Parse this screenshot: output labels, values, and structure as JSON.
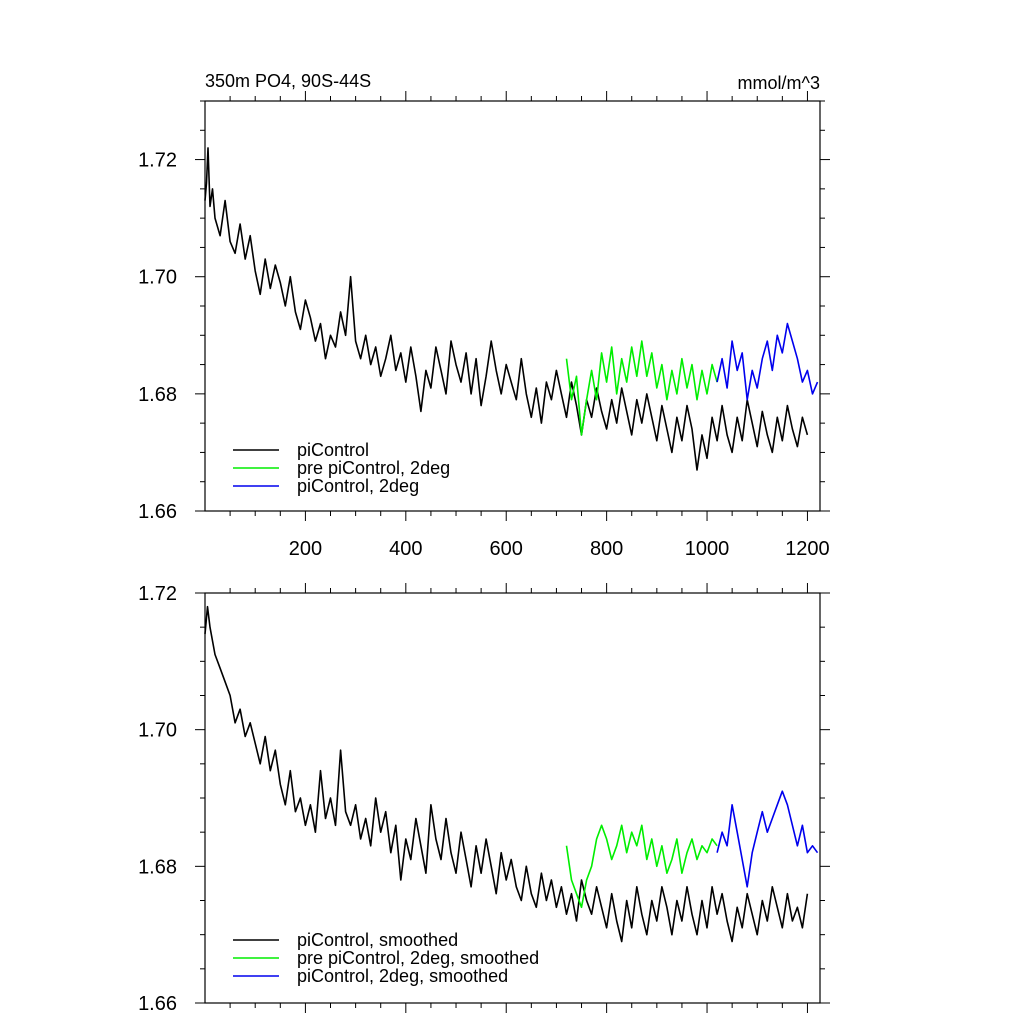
{
  "chart_data": [
    {
      "type": "line",
      "title_left": "350m PO4, 90S-44S",
      "title_right": "mmol/m^3",
      "xlim": [
        0,
        1225
      ],
      "ylim": [
        1.66,
        1.73
      ],
      "x_ticks": [
        200,
        400,
        600,
        800,
        1000,
        1200
      ],
      "y_ticks": [
        "1.66",
        "1.68",
        "1.70",
        "1.72"
      ],
      "legend_position": "bottom-left",
      "series": [
        {
          "name": "piControl",
          "color": "#000000",
          "x": [
            0,
            3,
            6,
            10,
            15,
            20,
            30,
            40,
            50,
            60,
            70,
            80,
            90,
            100,
            110,
            120,
            130,
            140,
            150,
            160,
            170,
            180,
            190,
            200,
            210,
            220,
            230,
            240,
            250,
            260,
            270,
            280,
            290,
            300,
            310,
            320,
            330,
            340,
            350,
            360,
            370,
            380,
            390,
            400,
            410,
            420,
            430,
            440,
            450,
            460,
            470,
            480,
            490,
            500,
            510,
            520,
            530,
            540,
            550,
            560,
            570,
            580,
            590,
            600,
            610,
            620,
            630,
            640,
            650,
            660,
            670,
            680,
            690,
            700,
            710,
            720,
            730,
            740,
            750,
            760,
            770,
            780,
            790,
            800,
            810,
            820,
            830,
            840,
            850,
            860,
            870,
            880,
            890,
            900,
            910,
            920,
            930,
            940,
            950,
            960,
            970,
            980,
            990,
            1000,
            1010,
            1020,
            1030,
            1040,
            1050,
            1060,
            1070,
            1080,
            1090,
            1100,
            1110,
            1120,
            1130,
            1140,
            1150,
            1160,
            1170,
            1180,
            1190,
            1200
          ],
          "values": [
            1.713,
            1.716,
            1.722,
            1.712,
            1.715,
            1.71,
            1.707,
            1.713,
            1.706,
            1.704,
            1.709,
            1.703,
            1.707,
            1.701,
            1.697,
            1.703,
            1.698,
            1.702,
            1.699,
            1.695,
            1.7,
            1.694,
            1.691,
            1.696,
            1.693,
            1.689,
            1.692,
            1.686,
            1.69,
            1.688,
            1.694,
            1.69,
            1.7,
            1.689,
            1.686,
            1.69,
            1.685,
            1.688,
            1.683,
            1.686,
            1.69,
            1.684,
            1.687,
            1.682,
            1.688,
            1.683,
            1.677,
            1.684,
            1.681,
            1.688,
            1.684,
            1.68,
            1.689,
            1.685,
            1.682,
            1.687,
            1.68,
            1.686,
            1.678,
            1.683,
            1.689,
            1.684,
            1.68,
            1.685,
            1.682,
            1.679,
            1.686,
            1.68,
            1.676,
            1.681,
            1.675,
            1.682,
            1.679,
            1.684,
            1.68,
            1.676,
            1.682,
            1.678,
            1.673,
            1.679,
            1.676,
            1.681,
            1.677,
            1.674,
            1.679,
            1.675,
            1.681,
            1.677,
            1.673,
            1.679,
            1.675,
            1.68,
            1.676,
            1.672,
            1.678,
            1.674,
            1.67,
            1.676,
            1.672,
            1.678,
            1.674,
            1.667,
            1.673,
            1.669,
            1.676,
            1.672,
            1.678,
            1.673,
            1.67,
            1.676,
            1.672,
            1.679,
            1.675,
            1.671,
            1.677,
            1.673,
            1.67,
            1.676,
            1.672,
            1.678,
            1.674,
            1.671,
            1.676,
            1.673
          ]
        },
        {
          "name": "pre piControl, 2deg",
          "color": "#00ee00",
          "x": [
            720,
            730,
            740,
            750,
            760,
            770,
            780,
            790,
            800,
            810,
            820,
            830,
            840,
            850,
            860,
            870,
            880,
            890,
            900,
            910,
            920,
            930,
            940,
            950,
            960,
            970,
            980,
            990,
            1000,
            1010,
            1020
          ],
          "values": [
            1.686,
            1.679,
            1.683,
            1.673,
            1.679,
            1.684,
            1.679,
            1.687,
            1.682,
            1.688,
            1.68,
            1.686,
            1.682,
            1.688,
            1.683,
            1.689,
            1.683,
            1.687,
            1.681,
            1.685,
            1.679,
            1.684,
            1.68,
            1.686,
            1.681,
            1.685,
            1.679,
            1.684,
            1.68,
            1.685,
            1.682
          ]
        },
        {
          "name": "piControl, 2deg",
          "color": "#0000ee",
          "x": [
            1020,
            1030,
            1040,
            1050,
            1060,
            1070,
            1080,
            1090,
            1100,
            1110,
            1120,
            1130,
            1140,
            1150,
            1160,
            1170,
            1180,
            1190,
            1200,
            1210,
            1220
          ],
          "values": [
            1.682,
            1.686,
            1.681,
            1.689,
            1.684,
            1.687,
            1.679,
            1.684,
            1.681,
            1.686,
            1.689,
            1.684,
            1.69,
            1.687,
            1.692,
            1.689,
            1.686,
            1.682,
            1.684,
            1.68,
            1.682
          ]
        }
      ]
    },
    {
      "type": "line",
      "xlim": [
        0,
        1225
      ],
      "ylim": [
        1.66,
        1.72
      ],
      "x_ticks": [
        200,
        400,
        600,
        800,
        1000,
        1200
      ],
      "y_ticks": [
        "1.66",
        "1.68",
        "1.70",
        "1.72"
      ],
      "legend_position": "bottom-left",
      "series": [
        {
          "name": "piControl, smoothed",
          "color": "#000000",
          "x": [
            0,
            5,
            10,
            20,
            30,
            40,
            50,
            60,
            70,
            80,
            90,
            100,
            110,
            120,
            130,
            140,
            150,
            160,
            170,
            180,
            190,
            200,
            210,
            220,
            230,
            240,
            250,
            260,
            270,
            280,
            290,
            300,
            310,
            320,
            330,
            340,
            350,
            360,
            370,
            380,
            390,
            400,
            410,
            420,
            430,
            440,
            450,
            460,
            470,
            480,
            490,
            500,
            510,
            520,
            530,
            540,
            550,
            560,
            570,
            580,
            590,
            600,
            610,
            620,
            630,
            640,
            650,
            660,
            670,
            680,
            690,
            700,
            710,
            720,
            730,
            740,
            750,
            760,
            770,
            780,
            790,
            800,
            810,
            820,
            830,
            840,
            850,
            860,
            870,
            880,
            890,
            900,
            910,
            920,
            930,
            940,
            950,
            960,
            970,
            980,
            990,
            1000,
            1010,
            1020,
            1030,
            1040,
            1050,
            1060,
            1070,
            1080,
            1090,
            1100,
            1110,
            1120,
            1130,
            1140,
            1150,
            1160,
            1170,
            1180,
            1190,
            1200
          ],
          "values": [
            1.714,
            1.718,
            1.715,
            1.711,
            1.709,
            1.707,
            1.705,
            1.701,
            1.703,
            1.699,
            1.701,
            1.698,
            1.695,
            1.699,
            1.694,
            1.697,
            1.692,
            1.689,
            1.694,
            1.688,
            1.69,
            1.686,
            1.689,
            1.685,
            1.694,
            1.687,
            1.69,
            1.686,
            1.697,
            1.688,
            1.686,
            1.689,
            1.684,
            1.687,
            1.683,
            1.69,
            1.685,
            1.688,
            1.682,
            1.686,
            1.678,
            1.684,
            1.681,
            1.687,
            1.683,
            1.679,
            1.689,
            1.684,
            1.681,
            1.687,
            1.682,
            1.679,
            1.685,
            1.681,
            1.677,
            1.683,
            1.679,
            1.684,
            1.68,
            1.676,
            1.682,
            1.678,
            1.681,
            1.677,
            1.675,
            1.68,
            1.676,
            1.674,
            1.679,
            1.675,
            1.678,
            1.674,
            1.677,
            1.673,
            1.676,
            1.672,
            1.678,
            1.675,
            1.673,
            1.677,
            1.674,
            1.671,
            1.676,
            1.672,
            1.669,
            1.675,
            1.671,
            1.677,
            1.673,
            1.67,
            1.675,
            1.672,
            1.677,
            1.674,
            1.67,
            1.675,
            1.672,
            1.677,
            1.673,
            1.67,
            1.675,
            1.671,
            1.677,
            1.673,
            1.676,
            1.672,
            1.669,
            1.674,
            1.671,
            1.676,
            1.673,
            1.67,
            1.675,
            1.672,
            1.677,
            1.674,
            1.671,
            1.676,
            1.672,
            1.674,
            1.671,
            1.676
          ]
        },
        {
          "name": "pre piControl, 2deg, smoothed",
          "color": "#00ee00",
          "x": [
            720,
            730,
            740,
            750,
            760,
            770,
            780,
            790,
            800,
            810,
            820,
            830,
            840,
            850,
            860,
            870,
            880,
            890,
            900,
            910,
            920,
            930,
            940,
            950,
            960,
            970,
            980,
            990,
            1000,
            1010,
            1020
          ],
          "values": [
            1.683,
            1.678,
            1.676,
            1.674,
            1.678,
            1.68,
            1.684,
            1.686,
            1.684,
            1.681,
            1.683,
            1.686,
            1.682,
            1.685,
            1.683,
            1.686,
            1.681,
            1.684,
            1.68,
            1.683,
            1.679,
            1.681,
            1.684,
            1.679,
            1.682,
            1.684,
            1.681,
            1.683,
            1.682,
            1.684,
            1.683
          ]
        },
        {
          "name": "piControl, 2deg, smoothed",
          "color": "#0000ee",
          "x": [
            1020,
            1030,
            1040,
            1050,
            1060,
            1070,
            1080,
            1090,
            1100,
            1110,
            1120,
            1130,
            1140,
            1150,
            1160,
            1170,
            1180,
            1190,
            1200,
            1210,
            1220
          ],
          "values": [
            1.682,
            1.685,
            1.683,
            1.689,
            1.685,
            1.681,
            1.677,
            1.682,
            1.685,
            1.688,
            1.685,
            1.687,
            1.689,
            1.691,
            1.689,
            1.686,
            1.683,
            1.686,
            1.682,
            1.683,
            1.682
          ]
        }
      ]
    }
  ]
}
